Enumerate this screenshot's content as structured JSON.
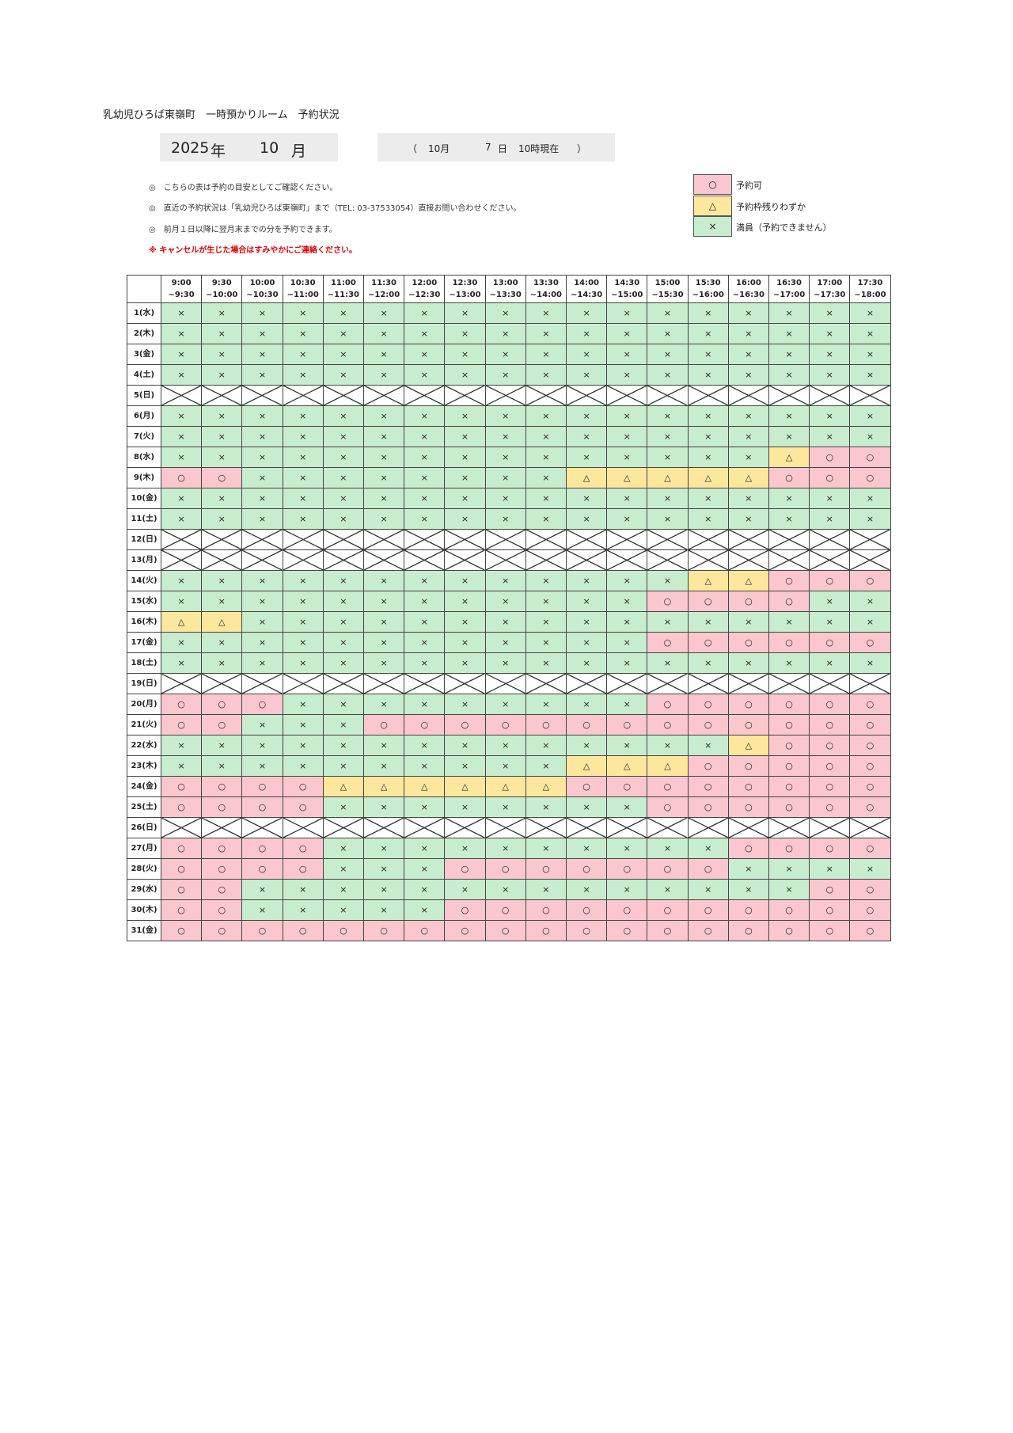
{
  "header": {
    "title": "乳幼児ひろば東嶺町　一時預かりルーム　予約状況",
    "year": "2025",
    "year_unit": "年",
    "month": "10",
    "month_unit": "月",
    "as_of": {
      "open": "（",
      "month": "10月",
      "day": "7",
      "day_unit": "日",
      "hour": "10時現在",
      "close": "）"
    }
  },
  "notes": [
    "◎　こちらの表は予約の目安としてご確認ください。",
    "◎　直近の予約状況は「乳幼児ひろば東嶺町」まで（TEL: 03-37533054）直接お問い合わせください。",
    "◎　前月１日以降に翌月末までの分を予約できます。"
  ],
  "warning": "※ キャンセルが生じた場合はすみやかにご連絡ください。",
  "legend": [
    {
      "symbol": "○",
      "label": "予約可",
      "color": "#f9c7cd"
    },
    {
      "symbol": "△",
      "label": "予約枠残りわずか",
      "color": "#fde79d"
    },
    {
      "symbol": "×",
      "label": "満員（予約できません）",
      "color": "#c8ecce"
    }
  ],
  "table": {
    "slots": [
      {
        "start": "9:00",
        "end": "~9:30"
      },
      {
        "start": "9:30",
        "end": "~10:00"
      },
      {
        "start": "10:00",
        "end": "~10:30"
      },
      {
        "start": "10:30",
        "end": "~11:00"
      },
      {
        "start": "11:00",
        "end": "~11:30"
      },
      {
        "start": "11:30",
        "end": "~12:00"
      },
      {
        "start": "12:00",
        "end": "~12:30"
      },
      {
        "start": "12:30",
        "end": "~13:00"
      },
      {
        "start": "13:00",
        "end": "~13:30"
      },
      {
        "start": "13:30",
        "end": "~14:00"
      },
      {
        "start": "14:00",
        "end": "~14:30"
      },
      {
        "start": "14:30",
        "end": "~15:00"
      },
      {
        "start": "15:00",
        "end": "~15:30"
      },
      {
        "start": "15:30",
        "end": "~16:00"
      },
      {
        "start": "16:00",
        "end": "~16:30"
      },
      {
        "start": "16:30",
        "end": "~17:00"
      },
      {
        "start": "17:00",
        "end": "~17:30"
      },
      {
        "start": "17:30",
        "end": "~18:00"
      }
    ],
    "rows": [
      {
        "day": "1(水)",
        "cells": [
          "×",
          "×",
          "×",
          "×",
          "×",
          "×",
          "×",
          "×",
          "×",
          "×",
          "×",
          "×",
          "×",
          "×",
          "×",
          "×",
          "×",
          "×"
        ]
      },
      {
        "day": "2(木)",
        "cells": [
          "×",
          "×",
          "×",
          "×",
          "×",
          "×",
          "×",
          "×",
          "×",
          "×",
          "×",
          "×",
          "×",
          "×",
          "×",
          "×",
          "×",
          "×"
        ]
      },
      {
        "day": "3(金)",
        "cells": [
          "×",
          "×",
          "×",
          "×",
          "×",
          "×",
          "×",
          "×",
          "×",
          "×",
          "×",
          "×",
          "×",
          "×",
          "×",
          "×",
          "×",
          "×"
        ]
      },
      {
        "day": "4(土)",
        "cells": [
          "×",
          "×",
          "×",
          "×",
          "×",
          "×",
          "×",
          "×",
          "×",
          "×",
          "×",
          "×",
          "×",
          "×",
          "×",
          "×",
          "×",
          "×"
        ]
      },
      {
        "day": "5(日)",
        "closed": true
      },
      {
        "day": "6(月)",
        "cells": [
          "×",
          "×",
          "×",
          "×",
          "×",
          "×",
          "×",
          "×",
          "×",
          "×",
          "×",
          "×",
          "×",
          "×",
          "×",
          "×",
          "×",
          "×"
        ]
      },
      {
        "day": "7(火)",
        "cells": [
          "×",
          "×",
          "×",
          "×",
          "×",
          "×",
          "×",
          "×",
          "×",
          "×",
          "×",
          "×",
          "×",
          "×",
          "×",
          "×",
          "×",
          "×"
        ]
      },
      {
        "day": "8(水)",
        "cells": [
          "×",
          "×",
          "×",
          "×",
          "×",
          "×",
          "×",
          "×",
          "×",
          "×",
          "×",
          "×",
          "×",
          "×",
          "×",
          "△",
          "○",
          "○"
        ]
      },
      {
        "day": "9(木)",
        "cells": [
          "○",
          "○",
          "×",
          "×",
          "×",
          "×",
          "×",
          "×",
          "×",
          "×",
          "△",
          "△",
          "△",
          "△",
          "△",
          "○",
          "○",
          "○"
        ]
      },
      {
        "day": "10(金)",
        "cells": [
          "×",
          "×",
          "×",
          "×",
          "×",
          "×",
          "×",
          "×",
          "×",
          "×",
          "×",
          "×",
          "×",
          "×",
          "×",
          "×",
          "×",
          "×"
        ]
      },
      {
        "day": "11(土)",
        "cells": [
          "×",
          "×",
          "×",
          "×",
          "×",
          "×",
          "×",
          "×",
          "×",
          "×",
          "×",
          "×",
          "×",
          "×",
          "×",
          "×",
          "×",
          "×"
        ]
      },
      {
        "day": "12(日)",
        "closed": true
      },
      {
        "day": "13(月)",
        "closed": true
      },
      {
        "day": "14(火)",
        "cells": [
          "×",
          "×",
          "×",
          "×",
          "×",
          "×",
          "×",
          "×",
          "×",
          "×",
          "×",
          "×",
          "×",
          "△",
          "△",
          "○",
          "○",
          "○"
        ]
      },
      {
        "day": "15(水)",
        "cells": [
          "×",
          "×",
          "×",
          "×",
          "×",
          "×",
          "×",
          "×",
          "×",
          "×",
          "×",
          "×",
          "○",
          "○",
          "○",
          "○",
          "×",
          "×"
        ]
      },
      {
        "day": "16(木)",
        "cells": [
          "△",
          "△",
          "×",
          "×",
          "×",
          "×",
          "×",
          "×",
          "×",
          "×",
          "×",
          "×",
          "×",
          "×",
          "×",
          "×",
          "×",
          "×"
        ]
      },
      {
        "day": "17(金)",
        "cells": [
          "×",
          "×",
          "×",
          "×",
          "×",
          "×",
          "×",
          "×",
          "×",
          "×",
          "×",
          "×",
          "○",
          "○",
          "○",
          "○",
          "○",
          "○"
        ]
      },
      {
        "day": "18(土)",
        "cells": [
          "×",
          "×",
          "×",
          "×",
          "×",
          "×",
          "×",
          "×",
          "×",
          "×",
          "×",
          "×",
          "×",
          "×",
          "×",
          "×",
          "×",
          "×"
        ]
      },
      {
        "day": "19(日)",
        "closed": true
      },
      {
        "day": "20(月)",
        "cells": [
          "○",
          "○",
          "○",
          "×",
          "×",
          "×",
          "×",
          "×",
          "×",
          "×",
          "×",
          "×",
          "○",
          "○",
          "○",
          "○",
          "○",
          "○"
        ]
      },
      {
        "day": "21(火)",
        "cells": [
          "○",
          "○",
          "×",
          "×",
          "×",
          "○",
          "○",
          "○",
          "○",
          "○",
          "○",
          "○",
          "○",
          "○",
          "○",
          "○",
          "○",
          "○"
        ]
      },
      {
        "day": "22(水)",
        "cells": [
          "×",
          "×",
          "×",
          "×",
          "×",
          "×",
          "×",
          "×",
          "×",
          "×",
          "×",
          "×",
          "×",
          "×",
          "△",
          "○",
          "○",
          "○"
        ]
      },
      {
        "day": "23(木)",
        "cells": [
          "×",
          "×",
          "×",
          "×",
          "×",
          "×",
          "×",
          "×",
          "×",
          "×",
          "△",
          "△",
          "△",
          "○",
          "○",
          "○",
          "○",
          "○"
        ]
      },
      {
        "day": "24(金)",
        "cells": [
          "○",
          "○",
          "○",
          "○",
          "△",
          "△",
          "△",
          "△",
          "△",
          "△",
          "○",
          "○",
          "○",
          "○",
          "○",
          "○",
          "○",
          "○"
        ]
      },
      {
        "day": "25(土)",
        "cells": [
          "○",
          "○",
          "○",
          "○",
          "×",
          "×",
          "×",
          "×",
          "×",
          "×",
          "×",
          "×",
          "○",
          "○",
          "○",
          "○",
          "○",
          "○"
        ]
      },
      {
        "day": "26(日)",
        "closed": true
      },
      {
        "day": "27(月)",
        "cells": [
          "○",
          "○",
          "○",
          "○",
          "×",
          "×",
          "×",
          "×",
          "×",
          "×",
          "×",
          "×",
          "×",
          "×",
          "○",
          "○",
          "○",
          "○"
        ]
      },
      {
        "day": "28(火)",
        "cells": [
          "○",
          "○",
          "○",
          "○",
          "×",
          "×",
          "×",
          "○",
          "○",
          "○",
          "○",
          "○",
          "○",
          "○",
          "×",
          "×",
          "×",
          "×"
        ]
      },
      {
        "day": "29(水)",
        "cells": [
          "○",
          "○",
          "×",
          "×",
          "×",
          "×",
          "×",
          "×",
          "×",
          "×",
          "×",
          "×",
          "×",
          "×",
          "×",
          "×",
          "○",
          "○"
        ]
      },
      {
        "day": "30(木)",
        "cells": [
          "○",
          "○",
          "×",
          "×",
          "×",
          "×",
          "×",
          "○",
          "○",
          "○",
          "○",
          "○",
          "○",
          "○",
          "○",
          "○",
          "○",
          "○"
        ]
      },
      {
        "day": "31(金)",
        "cells": [
          "○",
          "○",
          "○",
          "○",
          "○",
          "○",
          "○",
          "○",
          "○",
          "○",
          "○",
          "○",
          "○",
          "○",
          "○",
          "○",
          "○",
          "○"
        ]
      }
    ]
  }
}
